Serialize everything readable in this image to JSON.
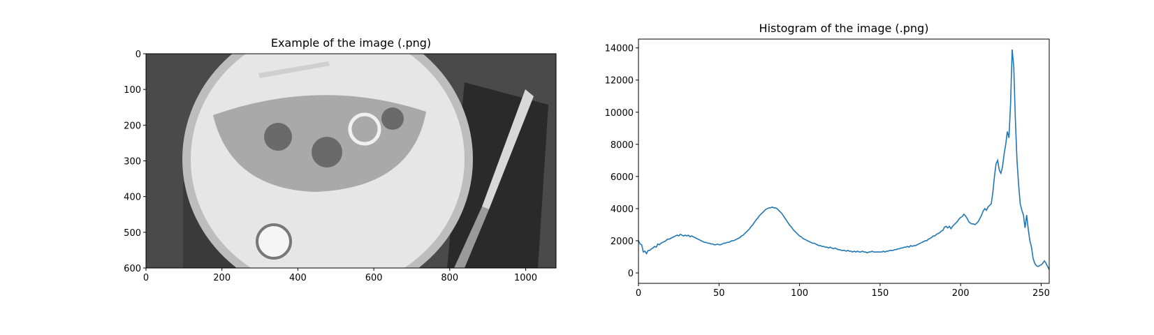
{
  "chart_data": [
    {
      "type": "image",
      "title": "Example of the image (.png)",
      "xlim": [
        0,
        1080
      ],
      "ylim": [
        600,
        0
      ],
      "xticks": [
        0,
        200,
        400,
        600,
        800,
        1000
      ],
      "yticks": [
        0,
        100,
        200,
        300,
        400,
        500,
        600
      ]
    },
    {
      "type": "line",
      "title": "Histogram of the image (.png)",
      "xlim": [
        0,
        255
      ],
      "ylim": [
        -650,
        14550
      ],
      "xticks": [
        0,
        50,
        100,
        150,
        200,
        250
      ],
      "yticks": [
        0,
        2000,
        4000,
        6000,
        8000,
        10000,
        12000,
        14000
      ],
      "x": [
        0,
        1,
        2,
        3,
        4,
        5,
        6,
        7,
        8,
        9,
        10,
        11,
        12,
        13,
        14,
        15,
        16,
        17,
        18,
        19,
        20,
        21,
        22,
        23,
        24,
        25,
        26,
        27,
        28,
        29,
        30,
        31,
        32,
        33,
        34,
        35,
        36,
        37,
        38,
        39,
        40,
        41,
        42,
        43,
        44,
        45,
        46,
        47,
        48,
        49,
        50,
        51,
        52,
        53,
        54,
        55,
        56,
        57,
        58,
        59,
        60,
        61,
        62,
        63,
        64,
        65,
        66,
        67,
        68,
        69,
        70,
        71,
        72,
        73,
        74,
        75,
        76,
        77,
        78,
        79,
        80,
        81,
        82,
        83,
        84,
        85,
        86,
        87,
        88,
        89,
        90,
        91,
        92,
        93,
        94,
        95,
        96,
        97,
        98,
        99,
        100,
        101,
        102,
        103,
        104,
        105,
        106,
        107,
        108,
        109,
        110,
        111,
        112,
        113,
        114,
        115,
        116,
        117,
        118,
        119,
        120,
        121,
        122,
        123,
        124,
        125,
        126,
        127,
        128,
        129,
        130,
        131,
        132,
        133,
        134,
        135,
        136,
        137,
        138,
        139,
        140,
        141,
        142,
        143,
        144,
        145,
        146,
        147,
        148,
        149,
        150,
        151,
        152,
        153,
        154,
        155,
        156,
        157,
        158,
        159,
        160,
        161,
        162,
        163,
        164,
        165,
        166,
        167,
        168,
        169,
        170,
        171,
        172,
        173,
        174,
        175,
        176,
        177,
        178,
        179,
        180,
        181,
        182,
        183,
        184,
        185,
        186,
        187,
        188,
        189,
        190,
        191,
        192,
        193,
        194,
        195,
        196,
        197,
        198,
        199,
        200,
        201,
        202,
        203,
        204,
        205,
        206,
        207,
        208,
        209,
        210,
        211,
        212,
        213,
        214,
        215,
        216,
        217,
        218,
        219,
        220,
        221,
        222,
        223,
        224,
        225,
        226,
        227,
        228,
        229,
        230,
        231,
        232,
        233,
        234,
        235,
        236,
        237,
        238,
        239,
        240,
        241,
        242,
        243,
        244,
        245,
        246,
        247,
        248,
        249,
        250,
        251,
        252,
        253,
        254,
        255
      ],
      "series": [
        {
          "color": "#1f77b4",
          "values": [
            2000,
            1800,
            1750,
            1300,
            1350,
            1200,
            1400,
            1400,
            1500,
            1550,
            1650,
            1600,
            1800,
            1750,
            1850,
            1900,
            1950,
            2000,
            2100,
            2100,
            2150,
            2200,
            2250,
            2300,
            2350,
            2300,
            2400,
            2350,
            2300,
            2350,
            2300,
            2350,
            2250,
            2300,
            2250,
            2200,
            2150,
            2100,
            2050,
            2000,
            1950,
            1900,
            1900,
            1850,
            1850,
            1800,
            1800,
            1750,
            1750,
            1800,
            1750,
            1750,
            1800,
            1850,
            1850,
            1900,
            1900,
            1950,
            2000,
            2000,
            2050,
            2100,
            2150,
            2200,
            2300,
            2350,
            2450,
            2550,
            2650,
            2750,
            2900,
            3000,
            3150,
            3300,
            3400,
            3550,
            3650,
            3750,
            3850,
            3950,
            4000,
            4050,
            4050,
            4100,
            4050,
            4050,
            4000,
            3900,
            3800,
            3700,
            3550,
            3400,
            3250,
            3100,
            2950,
            2850,
            2700,
            2600,
            2500,
            2400,
            2300,
            2250,
            2150,
            2100,
            2050,
            2000,
            1950,
            1900,
            1850,
            1850,
            1800,
            1750,
            1700,
            1700,
            1650,
            1650,
            1600,
            1600,
            1550,
            1600,
            1550,
            1500,
            1550,
            1500,
            1450,
            1450,
            1400,
            1400,
            1400,
            1350,
            1400,
            1350,
            1350,
            1300,
            1350,
            1300,
            1350,
            1300,
            1300,
            1350,
            1300,
            1300,
            1250,
            1300,
            1300,
            1350,
            1300,
            1300,
            1300,
            1300,
            1300,
            1300,
            1350,
            1300,
            1350,
            1350,
            1400,
            1400,
            1400,
            1450,
            1450,
            1500,
            1500,
            1550,
            1550,
            1600,
            1600,
            1650,
            1600,
            1700,
            1650,
            1700,
            1700,
            1750,
            1800,
            1850,
            1900,
            1950,
            2000,
            2000,
            2100,
            2150,
            2200,
            2300,
            2300,
            2400,
            2450,
            2500,
            2600,
            2650,
            2850,
            2900,
            2800,
            2900,
            2750,
            2900,
            3000,
            3100,
            3200,
            3350,
            3450,
            3500,
            3650,
            3550,
            3400,
            3200,
            3100,
            3050,
            3050,
            3000,
            3100,
            3200,
            3400,
            3600,
            3850,
            4000,
            3900,
            4100,
            4200,
            4300,
            5000,
            6000,
            6800,
            7000,
            6400,
            6200,
            6600,
            7400,
            8000,
            8800,
            8400,
            10500,
            13900,
            12800,
            9500,
            7000,
            5500,
            4300,
            3900,
            3600,
            2800,
            3600,
            2700,
            2000,
            1600,
            900,
            600,
            450,
            400,
            450,
            500,
            600,
            750,
            600,
            400,
            200
          ]
        }
      ]
    }
  ]
}
